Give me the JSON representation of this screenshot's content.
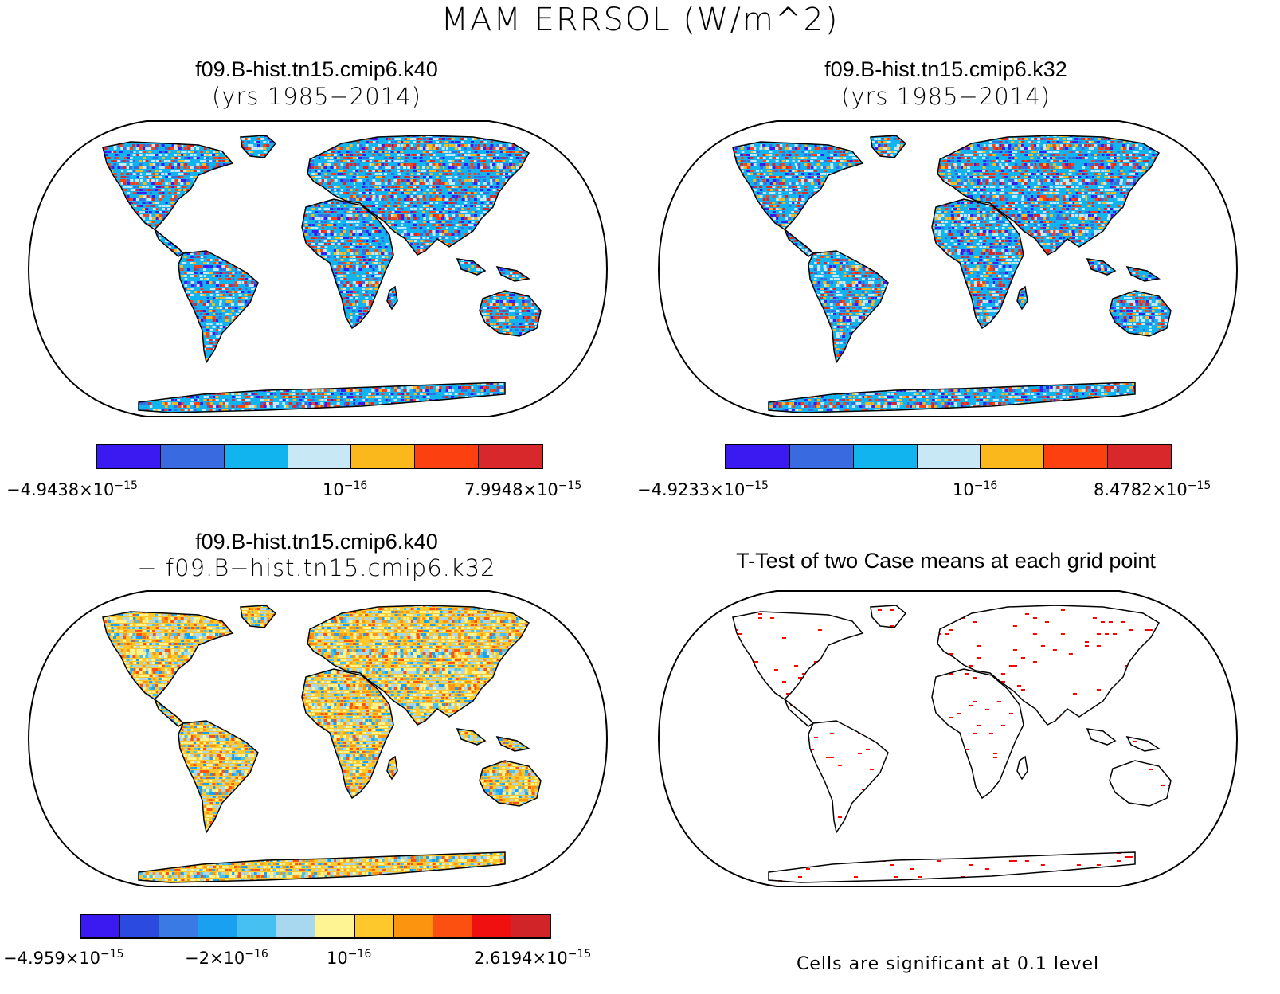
{
  "title": "MAM ERRSOL (W/m^2)",
  "panels": [
    {
      "title": "f09.B-hist.tn15.cmip6.k40",
      "subtitle": "(yrs 1985−2014)",
      "colorbar": {
        "colors": [
          "#3a1af0",
          "#3a6ae0",
          "#12b4f0",
          "#c8e8f6",
          "#fbb81c",
          "#fc4010",
          "#d8282c"
        ],
        "label_min": "−4.9438×10",
        "label_min_exp": "−15",
        "label_mid": "10",
        "label_mid_exp": "−16",
        "label_max": "7.9948×10",
        "label_max_exp": "−15"
      }
    },
    {
      "title": "f09.B-hist.tn15.cmip6.k32",
      "subtitle": "(yrs 1985−2014)",
      "colorbar": {
        "colors": [
          "#3a1af0",
          "#3a6ae0",
          "#12b4f0",
          "#c8e8f6",
          "#fbb81c",
          "#fc4010",
          "#d8282c"
        ],
        "label_min": "−4.9233×10",
        "label_min_exp": "−15",
        "label_mid": "10",
        "label_mid_exp": "−16",
        "label_max": "8.4782×10",
        "label_max_exp": "−15"
      }
    },
    {
      "title": "f09.B-hist.tn15.cmip6.k40",
      "subtitle": "− f09.B−hist.tn15.cmip6.k32",
      "colorbar": {
        "colors": [
          "#3a1af0",
          "#2a4ae0",
          "#3a7ae4",
          "#1aa0f0",
          "#46c0f0",
          "#a8d8f0",
          "#fff494",
          "#fcc82c",
          "#fc9410",
          "#fc5010",
          "#f01010",
          "#d02428"
        ],
        "label_a": "−4.959×10",
        "label_a_exp": "−15",
        "label_b": "−2×10",
        "label_b_exp": "−16",
        "label_c": "10",
        "label_c_exp": "−16",
        "label_d": "2.6194×10",
        "label_d_exp": "−15"
      }
    },
    {
      "title": "T-Test of two Case means at each grid point",
      "note": "Cells are significant at 0.1 level"
    }
  ]
}
